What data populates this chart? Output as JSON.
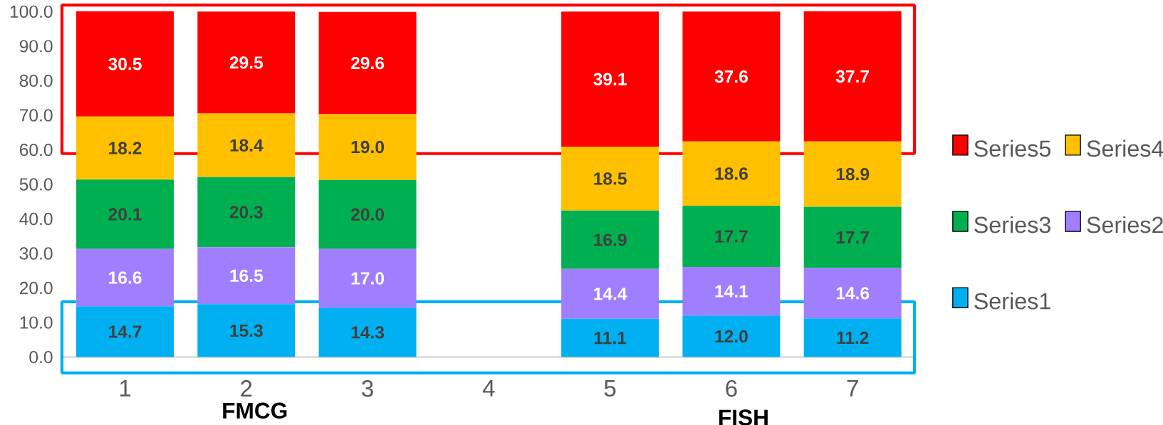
{
  "chart_data": {
    "type": "bar",
    "stacked": true,
    "categories": [
      "1",
      "2",
      "3",
      "4",
      "5",
      "6",
      "7"
    ],
    "series": [
      {
        "name": "Series1",
        "color": "#00b0f0",
        "values": [
          14.7,
          15.3,
          14.3,
          null,
          11.1,
          12.0,
          11.2
        ],
        "value_labels": [
          "14.7",
          "15.3",
          "14.3",
          null,
          "11.1",
          "12.0",
          "11.2"
        ]
      },
      {
        "name": "Series2",
        "color": "#a07fff",
        "values": [
          16.6,
          16.5,
          17.0,
          null,
          14.4,
          14.1,
          14.6
        ],
        "value_labels": [
          "16.6",
          "16.5",
          "17.0",
          null,
          "14.4",
          "14.1",
          "14.6"
        ]
      },
      {
        "name": "Series3",
        "color": "#00b050",
        "values": [
          20.1,
          20.3,
          20.0,
          null,
          16.9,
          17.7,
          17.7
        ],
        "value_labels": [
          "20.1",
          "20.3",
          "20.0",
          null,
          "16.9",
          "17.7",
          "17.7"
        ]
      },
      {
        "name": "Series4",
        "color": "#ffc000",
        "values": [
          18.2,
          18.4,
          19.0,
          null,
          18.5,
          18.6,
          18.9
        ],
        "value_labels": [
          "18.2",
          "18.4",
          "19.0",
          null,
          "18.5",
          "18.6",
          "18.9"
        ]
      },
      {
        "name": "Series5",
        "color": "#ff0000",
        "values": [
          30.5,
          29.5,
          29.6,
          null,
          39.1,
          37.6,
          37.7
        ],
        "value_labels": [
          "30.5",
          "29.5",
          "29.6",
          null,
          "39.1",
          "37.6",
          "37.7"
        ]
      }
    ],
    "ylim": [
      0,
      100
    ],
    "yticks": [
      {
        "value": 0,
        "label": "0.0"
      },
      {
        "value": 10,
        "label": "10.0"
      },
      {
        "value": 20,
        "label": "20.0"
      },
      {
        "value": 30,
        "label": "30.0"
      },
      {
        "value": 40,
        "label": "40.0"
      },
      {
        "value": 50,
        "label": "50.0"
      },
      {
        "value": 60,
        "label": "60.0"
      },
      {
        "value": 70,
        "label": "70.0"
      },
      {
        "value": 80,
        "label": "80.0"
      },
      {
        "value": 90,
        "label": "90.0"
      },
      {
        "value": 100,
        "label": "100.0"
      }
    ],
    "legend": "right",
    "annotations": [
      "FMCG",
      "FISH"
    ]
  }
}
